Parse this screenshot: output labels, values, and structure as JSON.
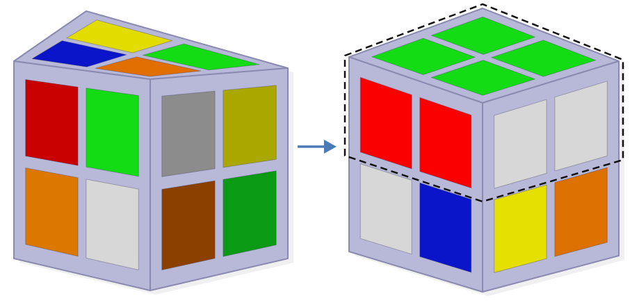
{
  "colors": {
    "frame": "#b8b8d8",
    "frame_shadow": "#8a8ab0",
    "background": "#ffffff",
    "arrow": "#4a7bb7",
    "outline": "#111111"
  },
  "cubes": [
    {
      "id": "scrambled",
      "top": [
        [
          "#0a14c8",
          "#e2dc00"
        ],
        [
          "#e06e00",
          "#14dc14"
        ]
      ],
      "left": [
        [
          "#c80000",
          "#14dc14"
        ],
        [
          "#dc7800",
          "#d7d7d7"
        ]
      ],
      "right": [
        [
          "#8c8c8c",
          "#aaa800"
        ],
        [
          "#8c4000",
          "#0a9a14"
        ]
      ],
      "highlight_top_layer": false
    },
    {
      "id": "solved-top-layer",
      "top": [
        [
          "#14dc14",
          "#14dc14"
        ],
        [
          "#14dc14",
          "#14dc14"
        ]
      ],
      "left": [
        [
          "#fa0000",
          "#fa0000"
        ],
        [
          "#d7d7d7",
          "#0a14c8"
        ]
      ],
      "right": [
        [
          "#d7d7d7",
          "#d7d7d7"
        ],
        [
          "#e6e000",
          "#dc7000"
        ]
      ],
      "highlight_top_layer": true
    }
  ],
  "arrow": {
    "icon": "right-arrow-icon"
  }
}
